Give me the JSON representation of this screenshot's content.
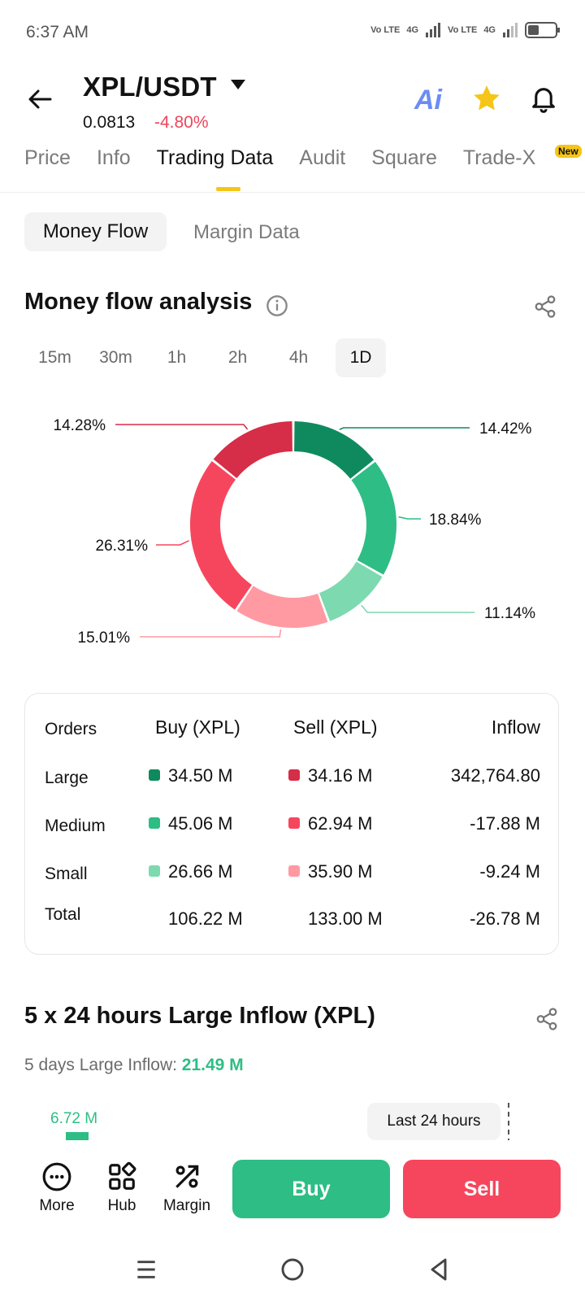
{
  "status_bar": {
    "time": "6:37 AM",
    "sim1": "Vo LTE",
    "sim1_net": "4G",
    "sim2": "Vo LTE",
    "sim2_net": "4G"
  },
  "header": {
    "pair": "XPL/USDT",
    "price": "0.0813",
    "change": "-4.80%",
    "ai_label": "Ai"
  },
  "tabs": [
    {
      "label": "Price"
    },
    {
      "label": "Info"
    },
    {
      "label": "Trading Data"
    },
    {
      "label": "Audit"
    },
    {
      "label": "Square"
    },
    {
      "label": "Trade-X"
    }
  ],
  "new_badge": "New",
  "sub_tabs": {
    "active": "Money Flow",
    "inactive": "Margin Data"
  },
  "money_flow": {
    "title": "Money flow analysis",
    "ranges": [
      "15m",
      "30m",
      "1h",
      "2h",
      "4h",
      "1D"
    ],
    "active_range": "1D"
  },
  "chart_data": {
    "type": "pie",
    "donut": true,
    "categories": [
      "Large Buy",
      "Medium Buy",
      "Small Buy",
      "Small Sell",
      "Medium Sell",
      "Large Sell"
    ],
    "values": [
      14.42,
      18.84,
      11.14,
      15.01,
      26.31,
      14.28
    ],
    "labels": [
      "14.42%",
      "18.84%",
      "11.14%",
      "15.01%",
      "26.31%",
      "14.28%"
    ],
    "colors": [
      "#0f8a5f",
      "#2ebd85",
      "#7dd9b0",
      "#ff9aa3",
      "#f6465d",
      "#d62d48"
    ]
  },
  "orders_table": {
    "headers": [
      "Orders",
      "Buy (XPL)",
      "Sell (XPL)",
      "Inflow"
    ],
    "rows": [
      {
        "label": "Large",
        "buy": "34.50 M",
        "sell": "34.16 M",
        "inflow": "342,764.80"
      },
      {
        "label": "Medium",
        "buy": "45.06 M",
        "sell": "62.94 M",
        "inflow": "-17.88 M"
      },
      {
        "label": "Small",
        "buy": "26.66 M",
        "sell": "35.90 M",
        "inflow": "-9.24 M"
      },
      {
        "label": "Total",
        "buy": "106.22 M",
        "sell": "133.00 M",
        "inflow": "-26.78 M"
      }
    ]
  },
  "large_inflow": {
    "title": "5 x 24 hours Large Inflow (XPL)",
    "subtitle_label": "5 days Large Inflow:",
    "subtitle_value": "21.49 M",
    "first_bar_value": "6.72 M",
    "tooltip": "Last 24 hours"
  },
  "bottom_bar": {
    "more": "More",
    "hub": "Hub",
    "margin": "Margin",
    "buy": "Buy",
    "sell": "Sell"
  }
}
